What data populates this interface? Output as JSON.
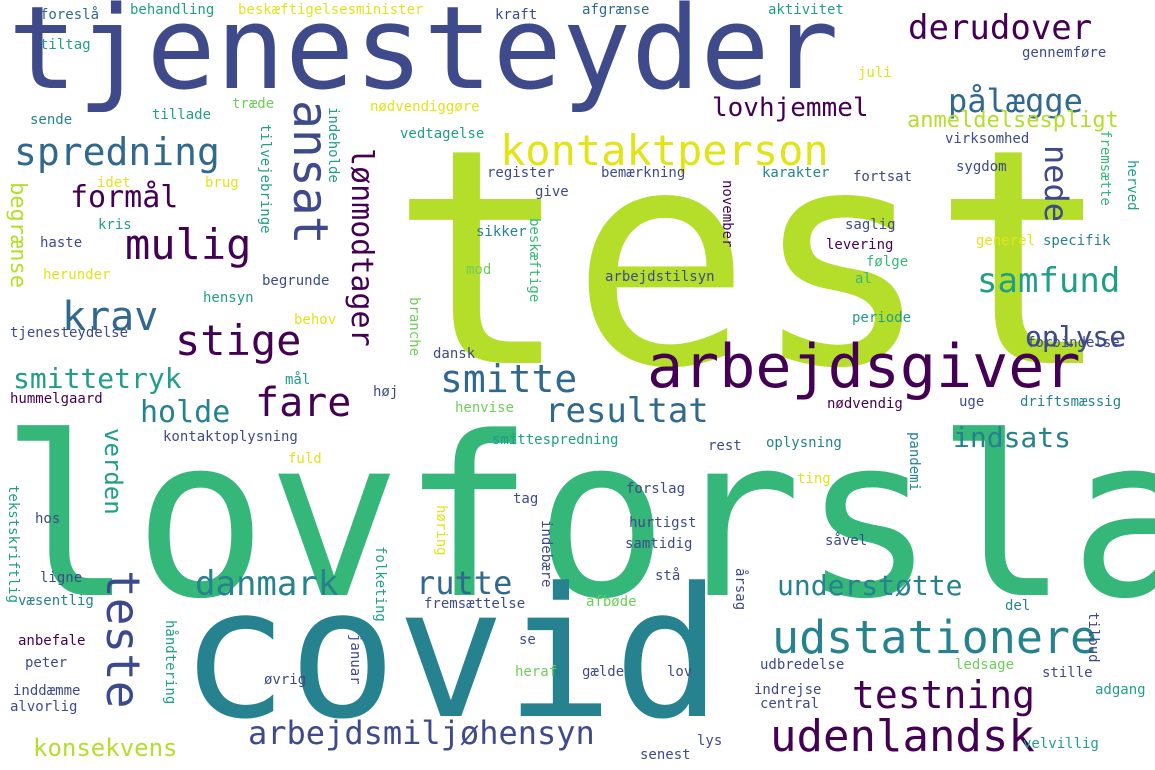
{
  "palette": {
    "navy": "#3b4a8c",
    "purple": "#440154",
    "indigo": "#3e4a89",
    "blue": "#31688e",
    "teal": "#26828e",
    "aqua": "#1f9e89",
    "green": "#35b779",
    "lime": "#6ece58",
    "yellowgreen": "#b5de2b",
    "yellow": "#e3e418"
  },
  "words": [
    "test",
    "lovforslag",
    "covid",
    "tjenesteyder",
    "arbejdsgiver",
    "kontaktperson",
    "udstationere",
    "udenlandsk",
    "arbejdsmiljøhensyn",
    "testning",
    "spredning",
    "mulig",
    "smitte",
    "resultat",
    "danmark",
    "rutte",
    "understøtte",
    "indsats",
    "samfund",
    "ansat",
    "lønmodtager",
    "teste",
    "stige",
    "fare",
    "holde",
    "krav",
    "formål",
    "smittetryk",
    "derudover",
    "pålægge",
    "lovhjemmel",
    "anmeldelsespligt",
    "nede",
    "oplyse",
    "konsekvens",
    "begrænse",
    "verden",
    "kontaktoplysning",
    "tjenesteydelse",
    "hummelgaard",
    "smittespredning",
    "behandling",
    "beskæftigelsesminister",
    "kraft",
    "afgrænse",
    "aktivitet",
    "foreslå",
    "tiltag",
    "gennemføre",
    "juli",
    "tillade",
    "sende",
    "træde",
    "nødvendiggøre",
    "vedtagelse",
    "virksomhed",
    "indeholde",
    "tilvejebringe",
    "register",
    "bemærkning",
    "karakter",
    "fortsat",
    "sygdom",
    "fremsætte",
    "herved",
    "idet",
    "brug",
    "give",
    "november",
    "saglig",
    "kris",
    "haste",
    "sikker",
    "levering",
    "generel",
    "specifik",
    "herunder",
    "mod",
    "beskæftige",
    "følge",
    "hensyn",
    "begrunde",
    "arbejdstilsyn",
    "al",
    "behov",
    "periode",
    "branche",
    "forbindelse",
    "dansk",
    "mål",
    "høj",
    "henvise",
    "nødvendig",
    "uge",
    "driftsmæssig",
    "fuld",
    "rest",
    "oplysning",
    "pandemi",
    "ting",
    "tekstskriftlig",
    "hos",
    "tag",
    "forslag",
    "hurtigst",
    "indebære",
    "samtidig",
    "høring",
    "såvel",
    "ligne",
    "folketing",
    "stå",
    "årsag",
    "væsentlig",
    "fremsættelse",
    "afbøde",
    "del",
    "tilbud",
    "anbefale",
    "se",
    "peter",
    "januar",
    "heraf",
    "gælde",
    "lov",
    "udbredelse",
    "ledsage",
    "stille",
    "inddæmme",
    "håndtering",
    "øvrig",
    "indrejse",
    "adgang",
    "alvorlig",
    "central",
    "lys",
    "senest",
    "velvillig"
  ]
}
